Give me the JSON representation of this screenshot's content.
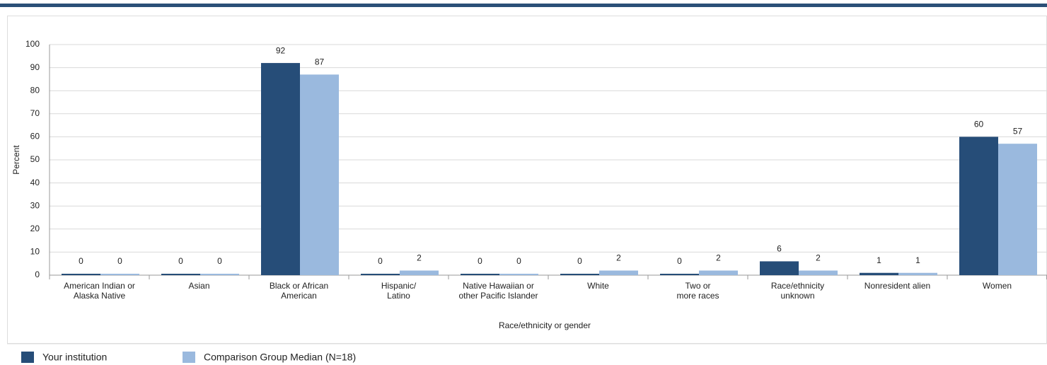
{
  "chart_data": {
    "type": "bar",
    "categories": [
      [
        "American Indian or",
        "Alaska Native"
      ],
      [
        "Asian"
      ],
      [
        "Black or African",
        "American"
      ],
      [
        "Hispanic/",
        "Latino"
      ],
      [
        "Native Hawaiian or",
        "other Pacific Islander"
      ],
      [
        "White"
      ],
      [
        "Two or",
        "more races"
      ],
      [
        "Race/ethnicity",
        "unknown"
      ],
      [
        "Nonresident alien"
      ],
      [
        "Women"
      ]
    ],
    "series": [
      {
        "name": "Your institution",
        "color": "#264d78",
        "values": [
          0,
          0,
          92,
          0,
          0,
          0,
          0,
          6,
          1,
          60
        ]
      },
      {
        "name": "Comparison Group Median (N=18)",
        "color": "#9ab9de",
        "values": [
          0,
          0,
          87,
          2,
          0,
          2,
          2,
          2,
          1,
          57
        ]
      }
    ],
    "x_label": "Race/ethnicity or gender",
    "y_label": "Percent",
    "ylim": [
      0,
      100
    ],
    "yticks": [
      0,
      10,
      20,
      30,
      40,
      50,
      60,
      70,
      80,
      90,
      100
    ],
    "grid": true
  }
}
